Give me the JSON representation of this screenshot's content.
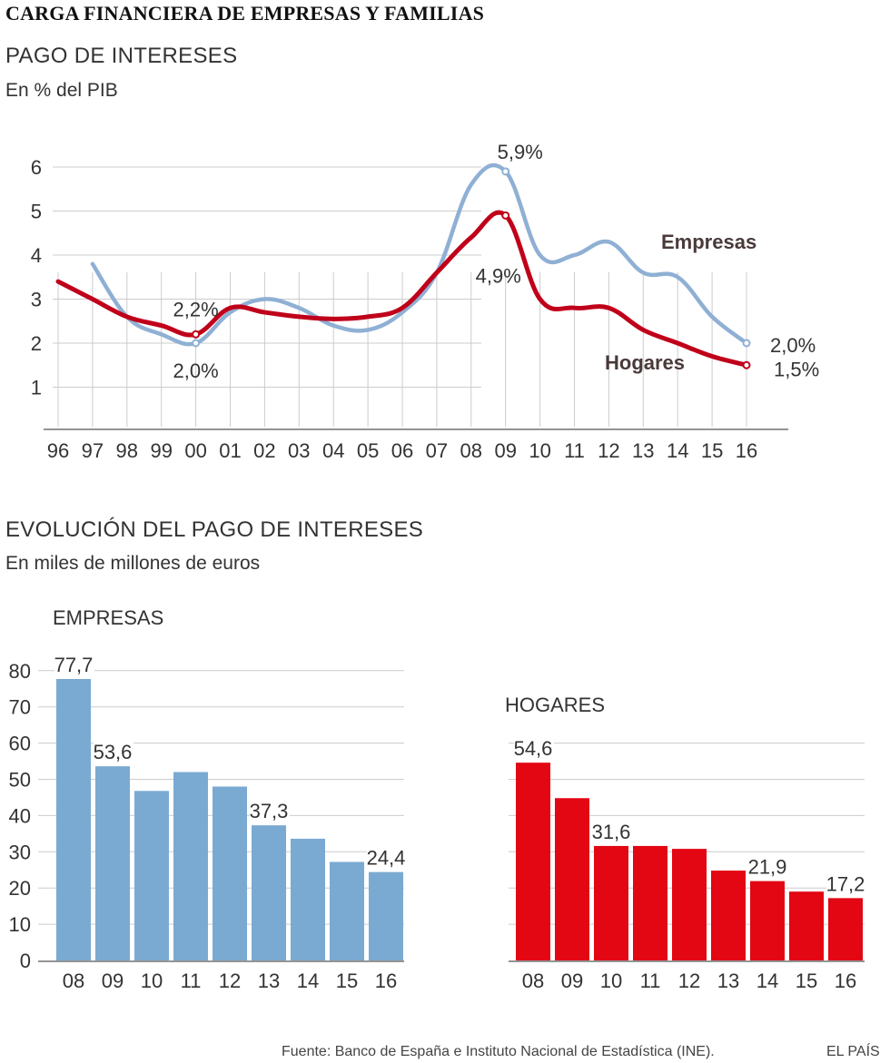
{
  "header": {
    "title": "CARGA FINANCIERA DE EMPRESAS Y FAMILIAS"
  },
  "line_section": {
    "title": "PAGO DE INTERESES",
    "subtitle": "En % del PIB"
  },
  "bar_section": {
    "title": "EVOLUCIÓN DEL PAGO DE INTERESES",
    "subtitle": "En miles de millones de euros"
  },
  "footer": {
    "source": "Fuente: Banco de España e Instituto Nacional de Estadística (INE).",
    "brand": "EL PAÍS"
  },
  "colors": {
    "empresas_line": "#8fb0d4",
    "hogares_line": "#c0001a",
    "empresas_bar": "#7aaad2",
    "hogares_bar": "#e30613",
    "grid": "#cccccc",
    "axis": "#555555"
  },
  "chart_data": [
    {
      "type": "line",
      "title": "PAGO DE INTERESES",
      "subtitle": "En % del PIB",
      "x": [
        "96",
        "97",
        "98",
        "99",
        "00",
        "01",
        "02",
        "03",
        "04",
        "05",
        "06",
        "07",
        "08",
        "09",
        "10",
        "11",
        "12",
        "13",
        "14",
        "15",
        "16"
      ],
      "yticks": [
        "1",
        "2",
        "3",
        "4",
        "5",
        "6"
      ],
      "ylim": [
        0,
        6.5
      ],
      "series": [
        {
          "name": "Empresas",
          "values": [
            null,
            3.8,
            2.6,
            2.2,
            2.0,
            2.7,
            3.0,
            2.8,
            2.4,
            2.3,
            2.7,
            3.6,
            5.6,
            5.9,
            4.0,
            4.0,
            4.3,
            3.6,
            3.5,
            2.6,
            2.0
          ]
        },
        {
          "name": "Hogares",
          "values": [
            3.4,
            3.0,
            2.6,
            2.4,
            2.2,
            2.8,
            2.7,
            2.6,
            2.55,
            2.6,
            2.8,
            3.6,
            4.4,
            4.9,
            3.0,
            2.8,
            2.8,
            2.3,
            2.0,
            1.7,
            1.5
          ]
        }
      ],
      "annotations": [
        {
          "text": "2,2%",
          "series": "Hogares",
          "x": "00"
        },
        {
          "text": "2,0%",
          "series": "Empresas",
          "x": "00"
        },
        {
          "text": "5,9%",
          "series": "Empresas",
          "x": "09"
        },
        {
          "text": "4,9%",
          "series": "Hogares",
          "x": "09"
        },
        {
          "text": "2,0%",
          "series": "Empresas",
          "x": "16"
        },
        {
          "text": "1,5%",
          "series": "Hogares",
          "x": "16"
        }
      ]
    },
    {
      "type": "bar",
      "title": "EMPRESAS",
      "categories": [
        "08",
        "09",
        "10",
        "11",
        "12",
        "13",
        "14",
        "15",
        "16"
      ],
      "values": [
        77.7,
        53.6,
        46.8,
        52.0,
        48.0,
        37.3,
        33.6,
        27.2,
        24.4
      ],
      "labels": [
        "77,7",
        "53,6",
        "",
        "",
        "",
        "37,3",
        "",
        "",
        "24,4"
      ],
      "yticks": [
        "0",
        "10",
        "20",
        "30",
        "40",
        "50",
        "60",
        "70",
        "80"
      ],
      "ylim": [
        0,
        80
      ]
    },
    {
      "type": "bar",
      "title": "HOGARES",
      "categories": [
        "08",
        "09",
        "10",
        "11",
        "12",
        "13",
        "14",
        "15",
        "16"
      ],
      "values": [
        54.6,
        44.8,
        31.6,
        31.6,
        30.8,
        24.8,
        21.9,
        19.0,
        17.2
      ],
      "labels": [
        "54,6",
        "",
        "31,6",
        "",
        "",
        "",
        "21,9",
        "",
        "17,2"
      ],
      "ylim": [
        0,
        80
      ]
    }
  ]
}
